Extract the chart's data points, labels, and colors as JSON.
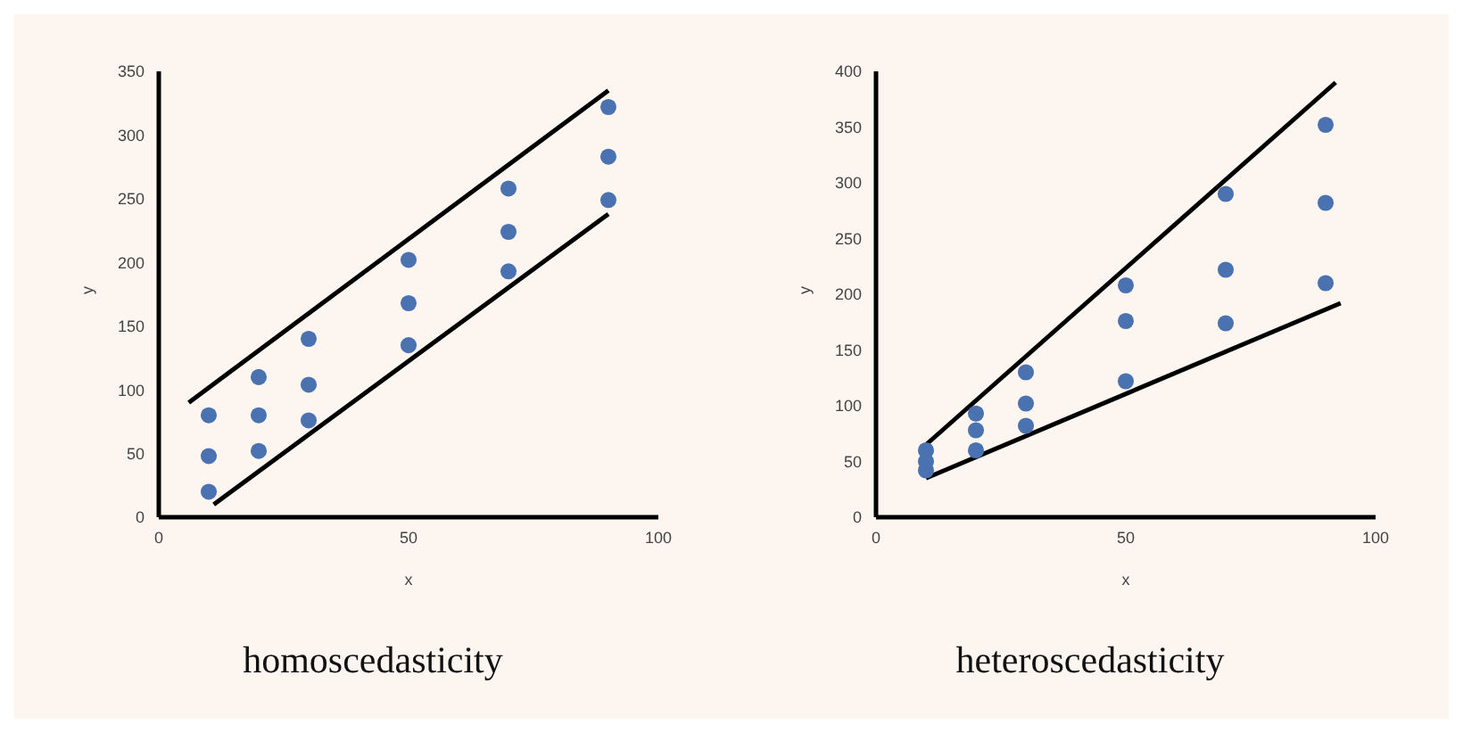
{
  "chart_data": [
    {
      "type": "scatter",
      "title": "homoscedasticity",
      "xlabel": "x",
      "ylabel": "y",
      "xlim": [
        0,
        100
      ],
      "xticks": [
        0,
        50,
        100
      ],
      "ylim": [
        0,
        350
      ],
      "yticks": [
        0,
        50,
        100,
        150,
        200,
        250,
        300,
        350
      ],
      "grid": false,
      "series": [
        {
          "marker": "circle",
          "color": "#4a72b0",
          "x": [
            10,
            10,
            10,
            20,
            20,
            20,
            30,
            30,
            30,
            50,
            50,
            50,
            70,
            70,
            70,
            90,
            90,
            90
          ],
          "values": [
            80,
            48,
            20,
            110,
            80,
            52,
            140,
            104,
            76,
            202,
            168,
            135,
            258,
            224,
            193,
            322,
            283,
            249
          ]
        },
        {
          "type": "line",
          "color": "#000000",
          "x": [
            6,
            90
          ],
          "values": [
            90,
            335
          ]
        },
        {
          "type": "line",
          "color": "#000000",
          "x": [
            11,
            90
          ],
          "values": [
            10,
            238
          ]
        }
      ]
    },
    {
      "type": "scatter",
      "title": "heteroscedasticity",
      "xlabel": "x",
      "ylabel": "y",
      "xlim": [
        0,
        100
      ],
      "xticks": [
        0,
        50,
        100
      ],
      "ylim": [
        0,
        400
      ],
      "yticks": [
        0,
        50,
        100,
        150,
        200,
        250,
        300,
        350,
        400
      ],
      "grid": false,
      "series": [
        {
          "marker": "circle",
          "color": "#4a72b0",
          "x": [
            10,
            10,
            10,
            20,
            20,
            20,
            30,
            30,
            30,
            50,
            50,
            50,
            70,
            70,
            70,
            90,
            90,
            90
          ],
          "values": [
            60,
            50,
            42,
            93,
            78,
            60,
            130,
            102,
            82,
            208,
            176,
            122,
            290,
            222,
            174,
            352,
            282,
            210
          ]
        },
        {
          "type": "line",
          "color": "#000000",
          "x": [
            10,
            92
          ],
          "values": [
            65,
            390
          ]
        },
        {
          "type": "line",
          "color": "#000000",
          "x": [
            10,
            93
          ],
          "values": [
            35,
            192
          ]
        }
      ]
    }
  ]
}
